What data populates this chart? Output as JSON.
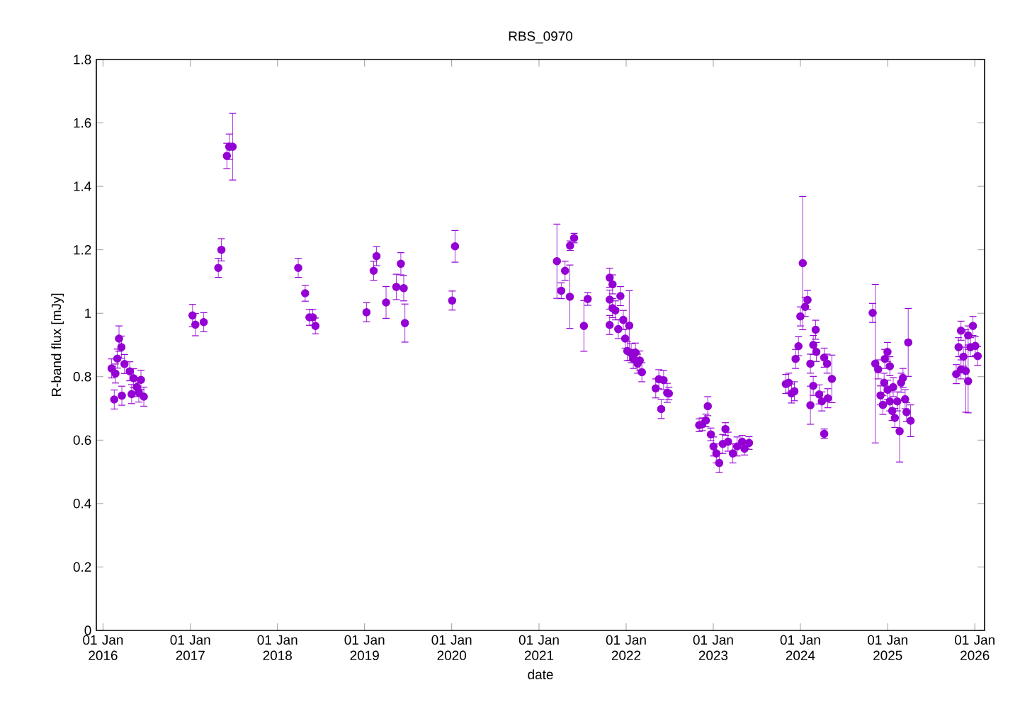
{
  "chart_data": {
    "type": "scatter",
    "title": "RBS_0970",
    "xlabel": "date",
    "ylabel": "R-band flux [mJy]",
    "xlim": [
      "2015-12-04",
      "2026-02-11"
    ],
    "ylim": [
      0,
      1.8
    ],
    "xticks": [
      {
        "value": "2016-01-01",
        "label": "01 Jan 2016"
      },
      {
        "value": "2017-01-01",
        "label": "01 Jan 2017"
      },
      {
        "value": "2018-01-01",
        "label": "01 Jan 2018"
      },
      {
        "value": "2019-01-01",
        "label": "01 Jan 2019"
      },
      {
        "value": "2020-01-01",
        "label": "01 Jan 2020"
      },
      {
        "value": "2021-01-01",
        "label": "01 Jan 2021"
      },
      {
        "value": "2022-01-01",
        "label": "01 Jan 2022"
      },
      {
        "value": "2023-01-01",
        "label": "01 Jan 2023"
      },
      {
        "value": "2024-01-01",
        "label": "01 Jan 2024"
      },
      {
        "value": "2025-01-01",
        "label": "01 Jan 2025"
      },
      {
        "value": "2026-01-01",
        "label": "01 Jan 2026"
      }
    ],
    "yticks": [
      0,
      0.2,
      0.4,
      0.6,
      0.8,
      1,
      1.2,
      1.4,
      1.6,
      1.8
    ],
    "marker": "circle",
    "series": [
      {
        "color": "#9400d3",
        "x": [
          "2016-02-06",
          "2016-02-17",
          "2016-02-22",
          "2016-03-01",
          "2016-03-08",
          "2016-03-18",
          "2016-03-20",
          "2016-03-31",
          "2016-04-22",
          "2016-04-30",
          "2016-05-08",
          "2016-05-22",
          "2016-05-30",
          "2016-06-08",
          "2016-06-20",
          "2017-01-10",
          "2017-01-22",
          "2017-02-26",
          "2017-04-28",
          "2017-05-11",
          "2017-06-03",
          "2017-06-13",
          "2017-06-27",
          "2018-03-29",
          "2018-04-27",
          "2018-05-15",
          "2018-05-29",
          "2018-06-09",
          "2019-01-09",
          "2019-02-08",
          "2019-02-20",
          "2019-04-01",
          "2019-05-14",
          "2019-06-14",
          "2019-06-02",
          "2019-06-19",
          "2020-01-03",
          "2020-01-15",
          "2021-03-17",
          "2021-04-04",
          "2021-04-20",
          "2021-05-10",
          "2021-05-11",
          "2021-05-28",
          "2021-07-08",
          "2021-07-24",
          "2021-10-24",
          "2021-11-05",
          "2021-10-24",
          "2021-11-05",
          "2021-11-17",
          "2021-10-24",
          "2021-11-29",
          "2021-12-08",
          "2021-12-20",
          "2021-12-28",
          "2022-01-06",
          "2022-01-22",
          "2022-01-31",
          "2022-01-14",
          "2022-02-09",
          "2022-02-18",
          "2022-02-27",
          "2022-03-08",
          "2022-05-05",
          "2022-05-18",
          "2022-05-28",
          "2022-06-07",
          "2022-06-22",
          "2022-06-29",
          "2022-11-03",
          "2022-11-16",
          "2022-12-01",
          "2022-12-09",
          "2022-12-22",
          "2023-01-02",
          "2023-01-14",
          "2023-01-26",
          "2023-02-10",
          "2023-02-21",
          "2023-03-04",
          "2023-03-24",
          "2023-04-11",
          "2023-05-02",
          "2023-05-12",
          "2023-05-31",
          "2023-11-01",
          "2023-11-13",
          "2023-11-25",
          "2023-12-07",
          "2023-12-24",
          "2023-12-12",
          "2024-01-31",
          "2024-01-21",
          "2024-01-01",
          "2024-01-11",
          "2024-03-05",
          "2024-02-24",
          "2024-03-08",
          "2024-02-12",
          "2024-02-24",
          "2024-02-12",
          "2024-03-20",
          "2024-03-31",
          "2024-04-10",
          "2024-04-10",
          "2024-04-22",
          "2024-04-25",
          "2024-05-12",
          "2024-10-30",
          "2024-11-10",
          "2024-11-22",
          "2024-12-02",
          "2024-12-12",
          "2024-12-17",
          "2024-12-20",
          "2024-12-31",
          "2025-01-01",
          "2025-01-10",
          "2025-01-10",
          "2025-01-24",
          "2025-01-20",
          "2025-01-31",
          "2025-02-10",
          "2025-02-20",
          "2025-03-06",
          "2025-02-26",
          "2025-03-15",
          "2025-03-21",
          "2025-03-28",
          "2025-04-07",
          "2025-10-15",
          "2025-11-04",
          "2025-10-25",
          "2025-11-04",
          "2025-11-14",
          "2025-11-24",
          "2025-12-04",
          "2025-12-14",
          "2025-12-24",
          "2025-12-04",
          "2026-01-03",
          "2026-01-13"
        ],
        "values": [
          0.826,
          0.728,
          0.81,
          0.857,
          0.92,
          0.893,
          0.74,
          0.84,
          0.817,
          0.745,
          0.795,
          0.767,
          0.75,
          0.79,
          0.737,
          0.993,
          0.964,
          0.972,
          1.143,
          1.2,
          1.496,
          1.525,
          1.525,
          1.143,
          1.063,
          0.987,
          0.987,
          0.96,
          1.003,
          1.134,
          1.18,
          1.034,
          1.083,
          1.079,
          1.156,
          0.969,
          1.04,
          1.211,
          1.164,
          1.071,
          1.134,
          1.052,
          1.213,
          1.237,
          0.96,
          1.045,
          1.112,
          1.091,
          1.043,
          1.016,
          1.009,
          0.963,
          0.95,
          1.054,
          0.979,
          0.92,
          0.881,
          0.874,
          0.856,
          0.961,
          0.876,
          0.841,
          0.851,
          0.814,
          0.763,
          0.792,
          0.698,
          0.789,
          0.749,
          0.747,
          0.647,
          0.65,
          0.662,
          0.707,
          0.618,
          0.58,
          0.558,
          0.528,
          0.588,
          0.635,
          0.595,
          0.558,
          0.58,
          0.595,
          0.573,
          0.591,
          0.777,
          0.781,
          0.747,
          0.754,
          0.896,
          0.856,
          1.042,
          1.02,
          0.99,
          1.158,
          0.948,
          0.9,
          0.878,
          0.841,
          0.771,
          0.71,
          0.744,
          0.722,
          0.62,
          0.86,
          0.841,
          0.732,
          0.793,
          1.001,
          0.841,
          0.823,
          0.741,
          0.711,
          0.781,
          0.856,
          0.878,
          0.759,
          0.833,
          0.722,
          0.767,
          0.692,
          0.67,
          0.722,
          0.628,
          0.796,
          0.781,
          0.729,
          0.688,
          0.908,
          0.661,
          0.808,
          0.945,
          0.893,
          0.823,
          0.863,
          0.818,
          0.93,
          0.893,
          0.96,
          0.786,
          0.897,
          0.865
        ],
        "errors": [
          0.03,
          0.03,
          0.03,
          0.03,
          0.04,
          0.035,
          0.03,
          0.03,
          0.03,
          0.03,
          0.03,
          0.03,
          0.03,
          0.03,
          0.03,
          0.035,
          0.035,
          0.03,
          0.03,
          0.035,
          0.04,
          0.04,
          0.105,
          0.03,
          0.025,
          0.025,
          0.025,
          0.025,
          0.03,
          0.03,
          0.03,
          0.05,
          0.04,
          0.04,
          0.035,
          0.06,
          0.03,
          0.05,
          0.117,
          0.025,
          0.03,
          0.1,
          0.015,
          0.015,
          0.08,
          0.02,
          0.03,
          0.03,
          0.03,
          0.03,
          0.03,
          0.03,
          0.03,
          0.03,
          0.03,
          0.03,
          0.03,
          0.03,
          0.03,
          0.11,
          0.03,
          0.03,
          0.03,
          0.03,
          0.03,
          0.03,
          0.03,
          0.03,
          0.03,
          0.02,
          0.02,
          0.02,
          0.02,
          0.03,
          0.02,
          0.03,
          0.03,
          0.03,
          0.03,
          0.02,
          0.03,
          0.03,
          0.03,
          0.02,
          0.02,
          0.02,
          0.03,
          0.03,
          0.03,
          0.03,
          0.03,
          0.03,
          0.03,
          0.03,
          0.03,
          0.21,
          0.03,
          0.03,
          0.03,
          0.03,
          0.03,
          0.06,
          0.03,
          0.03,
          0.015,
          0.03,
          0.03,
          0.03,
          0.075,
          0.03,
          0.25,
          0.03,
          0.03,
          0.03,
          0.03,
          0.03,
          0.03,
          0.03,
          0.03,
          0.03,
          0.03,
          0.03,
          0.03,
          0.03,
          0.097,
          0.03,
          0.03,
          0.03,
          0.03,
          0.107,
          0.05,
          0.03,
          0.03,
          0.03,
          0.03,
          0.03,
          0.13,
          0.03,
          0.03,
          0.03,
          0.1,
          0.03,
          0.03
        ]
      }
    ]
  }
}
